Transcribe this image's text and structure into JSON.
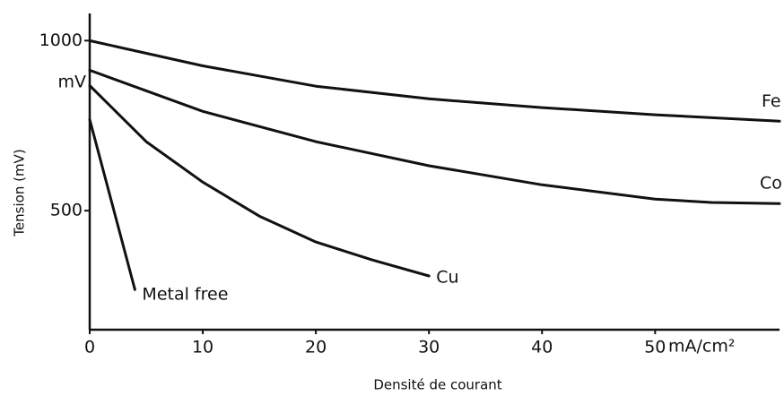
{
  "chart_data": {
    "type": "line",
    "y_label": "Tension (mV)",
    "x_label": "Densité de courant",
    "y_unit": "mV",
    "x_unit": "mA/cm²",
    "xlim": [
      0,
      61
    ],
    "ylim": [
      150,
      1080
    ],
    "xticks": [
      0,
      10,
      20,
      30,
      40,
      50
    ],
    "yticks": [
      500,
      1000
    ],
    "grid": false,
    "series": [
      {
        "name": "Fe",
        "color": "#111111",
        "x": [
          0,
          10,
          20,
          30,
          40,
          50,
          61
        ],
        "values": [
          1000,
          926,
          866,
          829,
          803,
          782,
          763
        ]
      },
      {
        "name": "Co",
        "color": "#111111",
        "x": [
          0,
          10,
          20,
          30,
          40,
          50,
          55,
          61
        ],
        "values": [
          913,
          792,
          703,
          632,
          576,
          534,
          524,
          521
        ]
      },
      {
        "name": "Cu",
        "color": "#111111",
        "x": [
          0,
          5,
          10,
          15,
          20,
          25,
          30
        ],
        "values": [
          868,
          703,
          584,
          484,
          408,
          355,
          308
        ]
      },
      {
        "name": "Metal free",
        "color": "#111111",
        "x": [
          0,
          2,
          4
        ],
        "values": [
          768,
          518,
          268
        ]
      }
    ]
  }
}
